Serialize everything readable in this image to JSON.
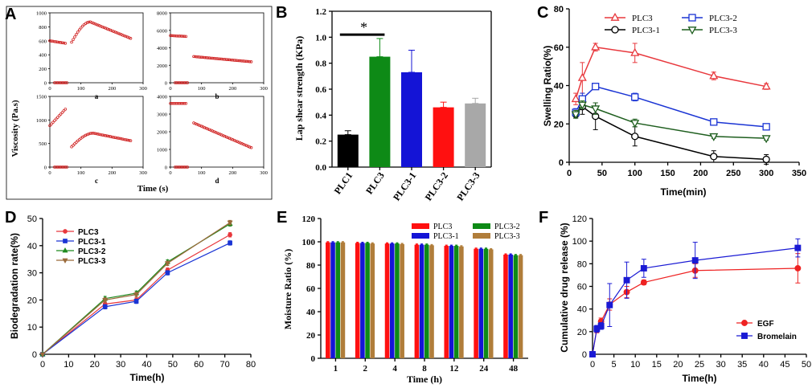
{
  "panels": [
    "A",
    "B",
    "C",
    "D",
    "E",
    "F"
  ],
  "chart_data": [
    {
      "id": "A",
      "type": "scatter",
      "ylabel": "Viscosity (Pa.s)",
      "xlabel": "Time (s)",
      "subplots": [
        {
          "label": "a",
          "ylim": [
            0,
            1000
          ],
          "yticks": [
            0,
            200,
            400,
            600,
            800,
            1000
          ],
          "xlim": [
            0,
            300
          ],
          "xticks": [
            0,
            100,
            200,
            300
          ],
          "segments": [
            {
              "x": [
                0,
                50
              ],
              "y": [
                600,
                565
              ]
            },
            {
              "x": [
                15,
                55
              ],
              "y": [
                0,
                0
              ]
            },
            {
              "x": [
                70,
                130,
                260
              ],
              "y": [
                580,
                870,
                635
              ]
            }
          ]
        },
        {
          "label": "b",
          "ylim": [
            0,
            8000
          ],
          "yticks": [
            0,
            2000,
            4000,
            6000,
            8000
          ],
          "xlim": [
            0,
            300
          ],
          "xticks": [
            0,
            100,
            200,
            300
          ],
          "segments": [
            {
              "x": [
                0,
                50
              ],
              "y": [
                5400,
                5300
              ]
            },
            {
              "x": [
                15,
                55
              ],
              "y": [
                0,
                0
              ]
            },
            {
              "x": [
                75,
                260
              ],
              "y": [
                3000,
                2400
              ]
            }
          ]
        },
        {
          "label": "c",
          "ylim": [
            0,
            1500
          ],
          "yticks": [
            0,
            500,
            1000,
            1500
          ],
          "xlim": [
            0,
            300
          ],
          "xticks": [
            0,
            100,
            200,
            300
          ],
          "segments": [
            {
              "x": [
                0,
                50
              ],
              "y": [
                880,
                1230
              ]
            },
            {
              "x": [
                15,
                55
              ],
              "y": [
                0,
                0
              ]
            },
            {
              "x": [
                70,
                140,
                260
              ],
              "y": [
                430,
                720,
                560
              ]
            }
          ]
        },
        {
          "label": "d",
          "ylim": [
            0,
            4000
          ],
          "yticks": [
            0,
            1000,
            2000,
            3000,
            4000
          ],
          "xlim": [
            0,
            300
          ],
          "xticks": [
            0,
            100,
            200,
            300
          ],
          "segments": [
            {
              "x": [
                0,
                50
              ],
              "y": [
                3600,
                3600
              ]
            },
            {
              "x": [
                15,
                55
              ],
              "y": [
                0,
                0
              ]
            },
            {
              "x": [
                75,
                260
              ],
              "y": [
                2500,
                1100
              ]
            }
          ]
        }
      ]
    },
    {
      "id": "B",
      "type": "bar",
      "ylabel": "Lap shear strength (KPa)",
      "categories": [
        "PLC1",
        "PLC3",
        "PLC3-1",
        "PLC3-2",
        "PLC3-3"
      ],
      "values": [
        0.25,
        0.85,
        0.73,
        0.46,
        0.49
      ],
      "errors": [
        0.03,
        0.14,
        0.17,
        0.04,
        0.04
      ],
      "colors": [
        "#000000",
        "#0e8a16",
        "#1414d6",
        "#ff1010",
        "#a8a8a8"
      ],
      "ylim": [
        0,
        1.2
      ],
      "yticks": [
        "0.0",
        "0.2",
        "0.4",
        "0.6",
        "0.8",
        "1.0",
        "1.2"
      ],
      "annotation": "*"
    },
    {
      "id": "C",
      "type": "line",
      "xlabel": "Time(min)",
      "ylabel": "Swelling Ratio(%)",
      "xlim": [
        0,
        350
      ],
      "xticks": [
        0,
        50,
        100,
        150,
        200,
        250,
        300,
        350
      ],
      "ylim": [
        0,
        80
      ],
      "yticks": [
        0,
        20,
        40,
        60,
        80
      ],
      "x": [
        10,
        20,
        40,
        100,
        220,
        300
      ],
      "series": [
        {
          "name": "PLC3",
          "color": "#e8383d",
          "marker": "triangle-up",
          "values": [
            33,
            44,
            60,
            57,
            45,
            39.5
          ],
          "errors": [
            3,
            8,
            2,
            5,
            2,
            1.5
          ]
        },
        {
          "name": "PLC3-1",
          "color": "#000000",
          "marker": "circle",
          "values": [
            25,
            29,
            24,
            13.5,
            3,
            1.5
          ],
          "errors": [
            2,
            4,
            7,
            5,
            3,
            2.5
          ]
        },
        {
          "name": "PLC3-2",
          "color": "#1a34d4",
          "marker": "square",
          "values": [
            26,
            33,
            39.5,
            34,
            21,
            18.5
          ],
          "errors": [
            2,
            3,
            1,
            2,
            1.5,
            1
          ]
        },
        {
          "name": "PLC3-3",
          "color": "#1e5e1e",
          "marker": "triangle-down",
          "values": [
            25,
            30,
            28,
            20.5,
            13.5,
            12.5
          ],
          "errors": [
            2,
            2,
            3,
            2,
            1,
            1
          ]
        }
      ]
    },
    {
      "id": "D",
      "type": "line",
      "xlabel": "Time(h)",
      "ylabel": "Biodegradation rate(%)",
      "xlim": [
        0,
        80
      ],
      "xticks": [
        0,
        10,
        20,
        30,
        40,
        50,
        60,
        70,
        80
      ],
      "ylim": [
        0,
        50
      ],
      "yticks": [
        0,
        10,
        20,
        30,
        40,
        50
      ],
      "x": [
        0,
        24,
        36,
        48,
        72
      ],
      "series": [
        {
          "name": "PLC3",
          "color": "#e8383d",
          "values": [
            0,
            18.5,
            20,
            31,
            44
          ]
        },
        {
          "name": "PLC3-1",
          "color": "#1a34d4",
          "values": [
            0,
            17.5,
            19.5,
            30,
            41
          ]
        },
        {
          "name": "PLC3-2",
          "color": "#1e8a1e",
          "values": [
            0,
            20.5,
            22.5,
            34,
            48
          ]
        },
        {
          "name": "PLC3-3",
          "color": "#9a6a3a",
          "values": [
            0,
            20,
            22,
            33.5,
            48.5
          ]
        }
      ]
    },
    {
      "id": "E",
      "type": "bar",
      "xlabel": "Time (h)",
      "ylabel": "Moisture Ratio (%)",
      "categories": [
        "1",
        "2",
        "4",
        "8",
        "12",
        "24",
        "48"
      ],
      "ylim": [
        0,
        120
      ],
      "yticks": [
        0,
        20,
        40,
        60,
        80,
        100,
        120
      ],
      "series": [
        {
          "name": "PLC3",
          "color": "#ff1010",
          "values": [
            99.5,
            99,
            98.5,
            97.5,
            96.5,
            94,
            89
          ]
        },
        {
          "name": "PLC3-1",
          "color": "#1414d6",
          "values": [
            99.5,
            99,
            98.5,
            97.5,
            96.5,
            94,
            89
          ]
        },
        {
          "name": "PLC3-2",
          "color": "#0e8a16",
          "values": [
            99.5,
            99,
            98.5,
            97.5,
            96.5,
            94,
            88.5
          ]
        },
        {
          "name": "PLC3-3",
          "color": "#b07d3a",
          "values": [
            99.5,
            98.5,
            98,
            97,
            96,
            93.5,
            88.5
          ]
        }
      ]
    },
    {
      "id": "F",
      "type": "line",
      "xlabel": "Time(h)",
      "ylabel": "Cumulative drug release (%)",
      "xlim": [
        0,
        50
      ],
      "xticks": [
        0,
        5,
        10,
        15,
        20,
        25,
        30,
        35,
        40,
        45,
        50
      ],
      "ylim": [
        0,
        120
      ],
      "yticks": [
        0,
        20,
        40,
        60,
        80,
        100,
        120
      ],
      "x": [
        0,
        1,
        2,
        4,
        8,
        12,
        24,
        48
      ],
      "series": [
        {
          "name": "EGF",
          "color": "#ee2222",
          "marker": "circle",
          "values": [
            0,
            22,
            29,
            44,
            55,
            63.5,
            74,
            76
          ],
          "errors": [
            0,
            3,
            3,
            5,
            5,
            2,
            6,
            13
          ]
        },
        {
          "name": "Bromelain",
          "color": "#1a1ad4",
          "marker": "square",
          "values": [
            0,
            22.5,
            25,
            43.5,
            65.5,
            76,
            83,
            94
          ],
          "errors": [
            0,
            3,
            3,
            19,
            16,
            8,
            16,
            8
          ]
        }
      ]
    }
  ]
}
